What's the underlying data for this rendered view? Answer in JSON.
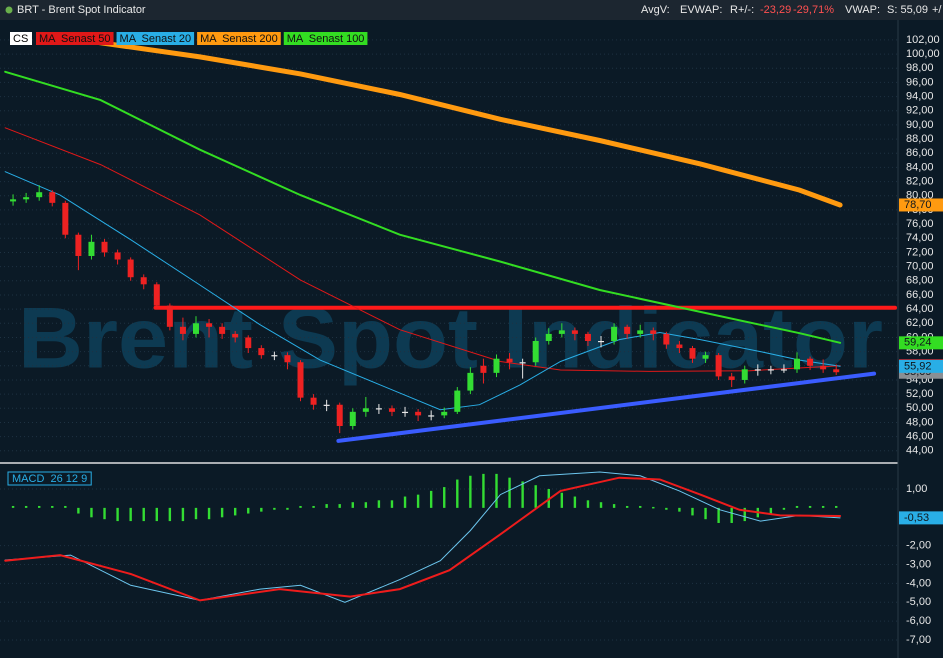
{
  "header": {
    "title": "BRT - Brent Spot Indicator",
    "avgv": "AvgV:",
    "evwap": "EVWAP:",
    "r": "R+/-:",
    "r_abs": "-23,29",
    "r_pct": "-29,71%",
    "vwap": "VWAP:",
    "s": "S: 55,09",
    "more": "+/"
  },
  "chart_data": [
    {
      "type": "candlestick",
      "label": "CS",
      "watermark": "Brent Spot Indicator",
      "xlim": [
        -1,
        67.5
      ],
      "ylim": [
        42.7,
        103.4
      ],
      "grid": true,
      "yticks": [
        {
          "value": 102,
          "label": "102,00"
        },
        {
          "value": 100,
          "label": "100,00"
        },
        {
          "value": 98,
          "label": "98,00"
        },
        {
          "value": 96,
          "label": "96,00"
        },
        {
          "value": 94,
          "label": "94,00"
        },
        {
          "value": 92,
          "label": "92,00"
        },
        {
          "value": 90,
          "label": "90,00"
        },
        {
          "value": 88,
          "label": "88,00"
        },
        {
          "value": 86,
          "label": "86,00"
        },
        {
          "value": 84,
          "label": "84,00"
        },
        {
          "value": 82,
          "label": "82,00"
        },
        {
          "value": 80,
          "label": "80,00"
        },
        {
          "value": 78,
          "label": "78,00"
        },
        {
          "value": 76,
          "label": "76,00"
        },
        {
          "value": 74,
          "label": "74,00"
        },
        {
          "value": 72,
          "label": "72,00"
        },
        {
          "value": 70,
          "label": "70,00"
        },
        {
          "value": 68,
          "label": "68,00"
        },
        {
          "value": 66,
          "label": "66,00"
        },
        {
          "value": 64,
          "label": "64,00"
        },
        {
          "value": 62,
          "label": "62,00"
        },
        {
          "value": 60,
          "label": "60,00"
        },
        {
          "value": 58,
          "label": "58,00"
        },
        {
          "value": 56,
          "label": "56,00"
        },
        {
          "value": 54,
          "label": "54,00"
        },
        {
          "value": 52,
          "label": "52,00"
        },
        {
          "value": 50,
          "label": "50,00"
        },
        {
          "value": 48,
          "label": "48,00"
        },
        {
          "value": 46,
          "label": "46,00"
        },
        {
          "value": 44,
          "label": "44,00"
        }
      ],
      "up_color": "#33dd33",
      "down_color": "#ee2222",
      "flat_color": "#e8e8e8",
      "open": [
        79.2,
        79.5,
        79.8,
        80.5,
        79.0,
        74.5,
        71.5,
        73.5,
        72.0,
        71.0,
        68.5,
        67.5,
        64.5,
        61.5,
        60.5,
        62.0,
        61.5,
        60.5,
        60.0,
        58.5,
        57.5,
        57.5,
        56.5,
        51.5,
        50.5,
        50.5,
        47.5,
        49.5,
        50.0,
        50.0,
        49.5,
        49.5,
        49.0,
        49.0,
        49.5,
        52.5,
        56.0,
        55.0,
        57.0,
        56.5,
        56.5,
        59.5,
        60.5,
        61.0,
        60.5,
        59.5,
        59.5,
        61.5,
        60.5,
        61.0,
        60.5,
        59.0,
        58.5,
        57.0,
        57.5,
        54.5,
        54.0,
        55.5,
        55.5,
        55.5,
        55.5,
        57.0,
        56.0,
        55.5
      ],
      "high": [
        80.2,
        80.4,
        81.5,
        80.8,
        79.3,
        74.8,
        74.5,
        73.9,
        72.4,
        71.3,
        68.9,
        67.8,
        64.8,
        62.8,
        63.0,
        62.6,
        62.0,
        60.9,
        60.3,
        58.9,
        58.0,
        57.9,
        56.8,
        52.0,
        51.2,
        50.8,
        50.0,
        51.6,
        50.6,
        50.4,
        50.2,
        49.9,
        49.7,
        50.1,
        53.0,
        55.8,
        57.0,
        57.6,
        57.8,
        57.0,
        60.0,
        61.3,
        62.0,
        61.4,
        60.8,
        60.2,
        62.0,
        61.8,
        61.8,
        61.4,
        60.8,
        59.5,
        58.8,
        58.0,
        57.8,
        55.0,
        56.0,
        56.2,
        56.0,
        56.2,
        57.9,
        57.3,
        56.9,
        56.2
      ],
      "low": [
        78.6,
        79.0,
        79.3,
        78.5,
        74.0,
        69.5,
        71.0,
        71.4,
        70.3,
        68.0,
        66.8,
        64.0,
        61.0,
        59.6,
        60.0,
        60.0,
        59.8,
        59.3,
        57.8,
        57.0,
        56.8,
        55.5,
        51.0,
        49.8,
        49.6,
        46.5,
        47.0,
        48.8,
        49.2,
        48.9,
        48.8,
        48.2,
        48.3,
        48.6,
        49.2,
        52.0,
        53.5,
        54.4,
        55.5,
        54.2,
        56.0,
        59.0,
        60.0,
        59.6,
        58.8,
        58.6,
        59.0,
        59.8,
        60.0,
        59.6,
        58.4,
        57.8,
        56.4,
        56.4,
        54.0,
        53.0,
        53.5,
        54.6,
        54.8,
        55.0,
        55.0,
        55.4,
        55.0,
        54.7
      ],
      "close": [
        79.5,
        79.8,
        80.5,
        79.0,
        74.5,
        71.5,
        73.5,
        72.0,
        71.0,
        68.5,
        67.5,
        64.5,
        61.5,
        60.5,
        62.0,
        61.5,
        60.5,
        60.0,
        58.5,
        57.5,
        57.5,
        56.5,
        51.5,
        50.5,
        50.5,
        47.5,
        49.5,
        50.0,
        50.0,
        49.5,
        49.5,
        49.0,
        49.0,
        49.5,
        52.5,
        55.0,
        55.0,
        57.0,
        56.5,
        56.5,
        59.5,
        60.5,
        61.0,
        60.5,
        59.5,
        59.5,
        61.5,
        60.5,
        61.0,
        60.5,
        59.0,
        58.5,
        57.0,
        57.5,
        54.5,
        54.0,
        55.5,
        55.5,
        55.5,
        55.5,
        57.0,
        56.0,
        55.5,
        55.09
      ],
      "last_label": "55,09",
      "last_color": "#8a8f94",
      "series": [
        {
          "name": "MA  Senast 50",
          "color": "#e01818",
          "width": 1,
          "x": [
            -0.6,
            6.7,
            14.3,
            22,
            29.6,
            37.3,
            41.9,
            48.7,
            56.4,
            63.3
          ],
          "values": [
            89.6,
            84.4,
            77.3,
            68.1,
            61.1,
            56.6,
            55.4,
            55.2,
            55.3,
            56.01
          ],
          "last_label": "56,01"
        },
        {
          "name": "MA  Senast 20",
          "color": "#29aee6",
          "width": 1,
          "x": [
            -0.6,
            3.6,
            9,
            14.3,
            18.9,
            23.5,
            28.1,
            32.7,
            35.7,
            38.8,
            41.9,
            46.4,
            49.5,
            52.6,
            57.2,
            60.2,
            63.3
          ],
          "values": [
            83.4,
            80.1,
            73.8,
            67.4,
            61.8,
            56.8,
            53.3,
            49.8,
            50.5,
            53.3,
            56.6,
            59.7,
            60.7,
            59.7,
            58.0,
            56.8,
            55.92
          ],
          "last_label": "55,92"
        },
        {
          "name": "MA  Senast 200",
          "color": "#ff9a10",
          "width": 5,
          "x": [
            5.9,
            14.3,
            22,
            29.6,
            37.3,
            44.9,
            52.6,
            60.2,
            63.3
          ],
          "values": [
            101.8,
            99.6,
            97.2,
            94.3,
            90.8,
            87.8,
            84.5,
            80.8,
            78.7
          ],
          "last_label": "78,70"
        },
        {
          "name": "MA  Senast 100",
          "color": "#33dd22",
          "width": 2,
          "x": [
            -0.6,
            6.7,
            14.3,
            22,
            29.6,
            37.3,
            44.9,
            52.6,
            60.2,
            63.3
          ],
          "values": [
            97.5,
            93.5,
            86.5,
            80.1,
            74.5,
            70.7,
            66.7,
            63.6,
            60.6,
            59.24
          ],
          "last_label": "59,24"
        }
      ],
      "lines": [
        {
          "color": "#ff1a1a",
          "x": [
            10.9,
            67.5
          ],
          "values": [
            64.2,
            64.2
          ]
        },
        {
          "color": "#3a5cff",
          "x": [
            24.9,
            65.9
          ],
          "values": [
            45.4,
            54.9
          ]
        }
      ]
    },
    {
      "type": "macd",
      "title": "MACD  26 12 9",
      "xlim": [
        -1,
        67.5
      ],
      "ylim": [
        -7.95,
        2.27
      ],
      "grid": true,
      "yticks": [
        {
          "value": 1,
          "label": "1,00"
        },
        {
          "value": -2,
          "label": "-2,00"
        },
        {
          "value": -3,
          "label": "-3,00"
        },
        {
          "value": -4,
          "label": "-4,00"
        },
        {
          "value": -5,
          "label": "-5,00"
        },
        {
          "value": -6,
          "label": "-6,00"
        },
        {
          "value": -7,
          "label": "-7,00"
        }
      ],
      "histogram": {
        "color": "#33dd33",
        "values": [
          0.1,
          0.1,
          0.1,
          0.1,
          0.1,
          -0.3,
          -0.5,
          -0.6,
          -0.7,
          -0.7,
          -0.7,
          -0.7,
          -0.7,
          -0.7,
          -0.6,
          -0.6,
          -0.5,
          -0.4,
          -0.3,
          -0.2,
          -0.1,
          -0.1,
          0.1,
          0.1,
          0.2,
          0.2,
          0.3,
          0.3,
          0.4,
          0.4,
          0.6,
          0.7,
          0.9,
          1.1,
          1.5,
          1.7,
          1.8,
          1.8,
          1.6,
          1.4,
          1.2,
          1.0,
          0.8,
          0.6,
          0.4,
          0.3,
          0.2,
          0.1,
          0.1,
          0.05,
          -0.1,
          -0.2,
          -0.4,
          -0.6,
          -0.8,
          -0.8,
          -0.7,
          -0.5,
          -0.3,
          -0.1,
          0.1,
          0.1,
          0.1,
          0.1
        ]
      },
      "series": [
        {
          "color": "#6cc6ee",
          "width": 1,
          "x": [
            -0.6,
            4.4,
            9,
            14.3,
            18.9,
            22,
            25.4,
            29.6,
            32.7,
            35,
            37.3,
            40.3,
            44.9,
            48,
            51,
            54.1,
            57.2,
            60.2,
            63.3
          ],
          "values": [
            -2.76,
            -2.5,
            -4.1,
            -4.9,
            -4.3,
            -4.1,
            -5.0,
            -3.8,
            -2.8,
            -1.2,
            0.7,
            1.7,
            1.9,
            1.7,
            0.9,
            -0.1,
            -0.7,
            -0.4,
            -0.53
          ],
          "last_label": "-0,53"
        },
        {
          "color": "#ee1c1c",
          "width": 2,
          "x": [
            -0.6,
            3.6,
            9,
            14.3,
            20.4,
            25.8,
            29.6,
            33.4,
            37.3,
            41.9,
            46.4,
            49.5,
            52.6,
            55.6,
            58.7,
            63.3
          ],
          "values": [
            -2.8,
            -2.5,
            -3.5,
            -4.9,
            -4.3,
            -4.7,
            -4.3,
            -3.3,
            -1.4,
            0.9,
            1.6,
            1.5,
            0.7,
            -0.1,
            -0.4,
            -0.43
          ]
        }
      ]
    }
  ]
}
